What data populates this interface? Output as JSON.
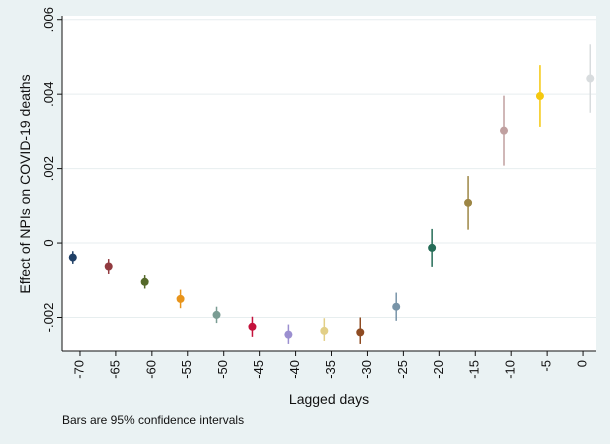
{
  "chart_data": {
    "type": "scatter",
    "xlabel": "Lagged days",
    "ylabel": "Effect of NPIs on COVID-19 deaths",
    "note": "Bars are 95% confidence intervals",
    "xlim": [
      -72.5,
      1.8
    ],
    "ylim": [
      -0.0029,
      0.0061
    ],
    "x_ticks": [
      -70,
      -65,
      -60,
      -55,
      -50,
      -45,
      -40,
      -35,
      -30,
      -25,
      -20,
      -15,
      -10,
      -5,
      0
    ],
    "y_ticks": [
      -0.002,
      0,
      0.002,
      0.004,
      0.006
    ],
    "y_tick_labels": [
      "-.002",
      "0",
      ".002",
      ".004",
      ".006"
    ],
    "grid": "horizontal",
    "points": [
      {
        "x": -71,
        "y": -0.00039,
        "lo": -0.00056,
        "hi": -0.00022,
        "color": "#1f3f66"
      },
      {
        "x": -66,
        "y": -0.00063,
        "lo": -0.00083,
        "hi": -0.00043,
        "color": "#913a3f"
      },
      {
        "x": -61,
        "y": -0.00104,
        "lo": -0.00122,
        "hi": -0.00086,
        "color": "#55692a"
      },
      {
        "x": -56,
        "y": -0.0015,
        "lo": -0.00175,
        "hi": -0.00125,
        "color": "#e8941a"
      },
      {
        "x": -51,
        "y": -0.00193,
        "lo": -0.00215,
        "hi": -0.00171,
        "color": "#7a9c93"
      },
      {
        "x": -46,
        "y": -0.00225,
        "lo": -0.00252,
        "hi": -0.00198,
        "color": "#c4123c"
      },
      {
        "x": -41,
        "y": -0.00246,
        "lo": -0.00271,
        "hi": -0.00219,
        "color": "#9b8fd0"
      },
      {
        "x": -36,
        "y": -0.00236,
        "lo": -0.00263,
        "hi": -0.00202,
        "color": "#e2cf87"
      },
      {
        "x": -31,
        "y": -0.0024,
        "lo": -0.00271,
        "hi": -0.002,
        "color": "#8e4b22"
      },
      {
        "x": -26,
        "y": -0.00171,
        "lo": -0.00209,
        "hi": -0.00133,
        "color": "#7894a8"
      },
      {
        "x": -21,
        "y": -0.00013,
        "lo": -0.00064,
        "hi": 0.00038,
        "color": "#256c57"
      },
      {
        "x": -16,
        "y": 0.00108,
        "lo": 0.00036,
        "hi": 0.0018,
        "color": "#9d8645"
      },
      {
        "x": -11,
        "y": 0.00302,
        "lo": 0.00208,
        "hi": 0.00396,
        "color": "#c0a0a0"
      },
      {
        "x": -6,
        "y": 0.00395,
        "lo": 0.00312,
        "hi": 0.00478,
        "color": "#f5c80e"
      },
      {
        "x": 1,
        "y": 0.00442,
        "lo": 0.0035,
        "hi": 0.00534,
        "color": "#d8dcde"
      }
    ]
  }
}
